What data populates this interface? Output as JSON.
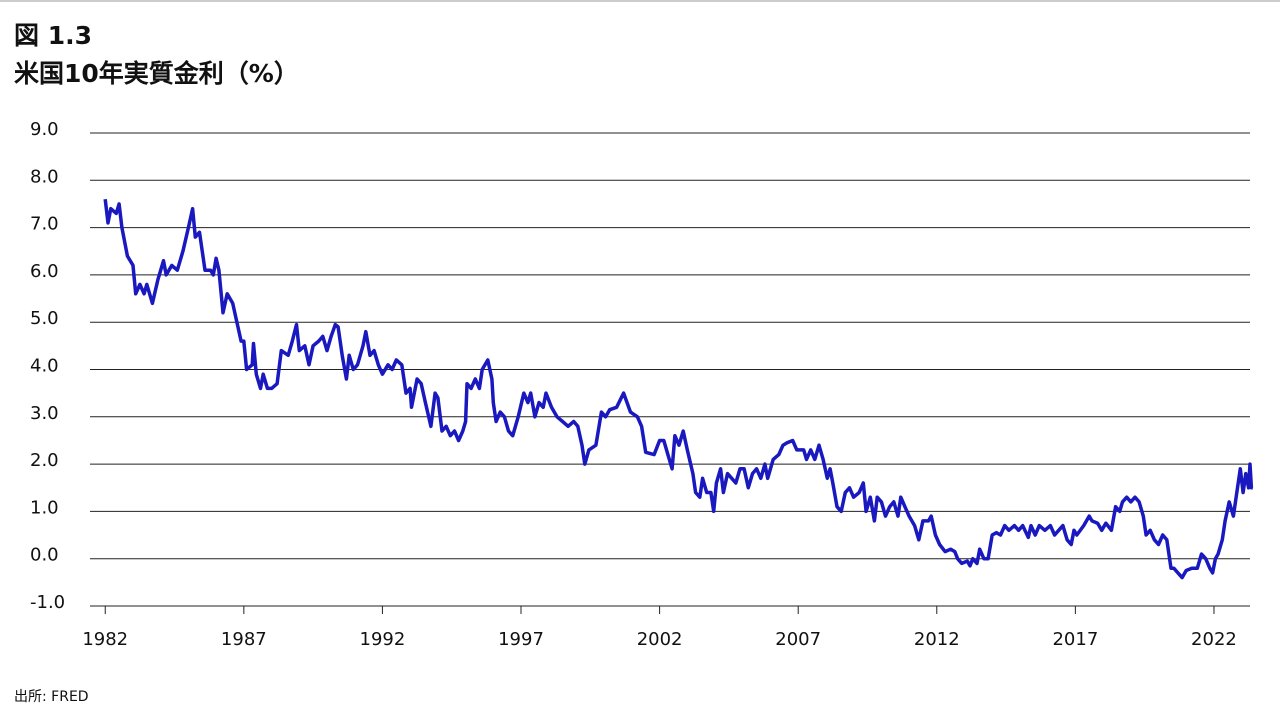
{
  "chart_data": {
    "type": "line",
    "figure_label": "図 1.3",
    "title": "米国10年実質金利（%）",
    "source": "出所: FRED",
    "x": [
      1982.0,
      1982.1,
      1982.2,
      1982.4,
      1982.5,
      1982.6,
      1982.8,
      1983.0,
      1983.1,
      1983.25,
      1983.4,
      1983.5,
      1983.7,
      1983.9,
      1984.1,
      1984.2,
      1984.4,
      1984.6,
      1984.8,
      1985.0,
      1985.15,
      1985.25,
      1985.4,
      1985.6,
      1985.8,
      1985.9,
      1986.0,
      1986.1,
      1986.25,
      1986.4,
      1986.6,
      1986.75,
      1986.9,
      1987.0,
      1987.1,
      1987.3,
      1987.35,
      1987.45,
      1987.6,
      1987.7,
      1987.85,
      1988.0,
      1988.2,
      1988.35,
      1988.6,
      1988.75,
      1988.9,
      1989.0,
      1989.2,
      1989.35,
      1989.5,
      1989.7,
      1989.85,
      1990.0,
      1990.15,
      1990.3,
      1990.4,
      1990.55,
      1990.7,
      1990.8,
      1990.95,
      1991.1,
      1991.3,
      1991.4,
      1991.55,
      1991.7,
      1991.85,
      1992.0,
      1992.2,
      1992.35,
      1992.5,
      1992.7,
      1992.85,
      1993.0,
      1993.05,
      1993.25,
      1993.4,
      1993.55,
      1993.75,
      1993.9,
      1994.0,
      1994.15,
      1994.3,
      1994.45,
      1994.6,
      1994.75,
      1994.9,
      1995.0,
      1995.05,
      1995.2,
      1995.35,
      1995.5,
      1995.6,
      1995.8,
      1995.95,
      1996.0,
      1996.1,
      1996.25,
      1996.4,
      1996.55,
      1996.7,
      1996.9,
      1997.1,
      1997.25,
      1997.35,
      1997.5,
      1997.65,
      1997.8,
      1997.9,
      1998.1,
      1998.3,
      1998.5,
      1998.7,
      1998.9,
      1999.05,
      1999.2,
      1999.3,
      1999.45,
      1999.7,
      1999.9,
      2000.05,
      2000.2,
      2000.45,
      2000.7,
      2000.95,
      2001.2,
      2001.35,
      2001.5,
      2001.8,
      2002.0,
      2002.15,
      2002.3,
      2002.45,
      2002.55,
      2002.7,
      2002.85,
      2003.0,
      2003.2,
      2003.3,
      2003.45,
      2003.55,
      2003.7,
      2003.85,
      2003.95,
      2004.05,
      2004.2,
      2004.3,
      2004.45,
      2004.6,
      2004.75,
      2004.9,
      2005.05,
      2005.2,
      2005.35,
      2005.5,
      2005.65,
      2005.8,
      2005.9,
      2006.1,
      2006.3,
      2006.45,
      2006.6,
      2006.8,
      2006.95,
      2007.2,
      2007.3,
      2007.45,
      2007.6,
      2007.75,
      2007.9,
      2008.05,
      2008.15,
      2008.25,
      2008.4,
      2008.55,
      2008.7,
      2008.85,
      2009.0,
      2009.2,
      2009.35,
      2009.45,
      2009.6,
      2009.75,
      2009.85,
      2010.0,
      2010.15,
      2010.3,
      2010.45,
      2010.6,
      2010.7,
      2010.85,
      2011.0,
      2011.2,
      2011.35,
      2011.5,
      2011.7,
      2011.8,
      2011.95,
      2012.1,
      2012.3,
      2012.5,
      2012.65,
      2012.75,
      2012.9,
      2013.1,
      2013.2,
      2013.3,
      2013.45,
      2013.55,
      2013.7,
      2013.85,
      2014.0,
      2014.15,
      2014.3,
      2014.45,
      2014.6,
      2014.8,
      2014.95,
      2015.1,
      2015.3,
      2015.4,
      2015.55,
      2015.7,
      2015.9,
      2016.1,
      2016.25,
      2016.4,
      2016.55,
      2016.7,
      2016.85,
      2016.95,
      2017.05,
      2017.3,
      2017.5,
      2017.6,
      2017.8,
      2017.95,
      2018.1,
      2018.3,
      2018.45,
      2018.6,
      2018.7,
      2018.85,
      2019.0,
      2019.15,
      2019.3,
      2019.45,
      2019.55,
      2019.7,
      2019.85,
      2020.0,
      2020.15,
      2020.3,
      2020.45,
      2020.55,
      2020.7,
      2020.85,
      2021.0,
      2021.2,
      2021.4,
      2021.55,
      2021.7,
      2021.85,
      2021.95,
      2022.05,
      2022.15,
      2022.3,
      2022.4,
      2022.55,
      2022.7,
      2022.85,
      2022.95,
      2023.05,
      2023.15,
      2023.25,
      2023.3,
      2023.35,
      2023.4
    ],
    "series": [
      {
        "color": "#1a18bf",
        "values": [
          7.6,
          7.1,
          7.4,
          7.3,
          7.5,
          7.0,
          6.4,
          6.2,
          5.6,
          5.8,
          5.6,
          5.8,
          5.4,
          5.9,
          6.3,
          6.0,
          6.2,
          6.1,
          6.5,
          7.0,
          7.4,
          6.8,
          6.9,
          6.1,
          6.1,
          6.0,
          6.35,
          6.1,
          5.2,
          5.6,
          5.4,
          5.0,
          4.6,
          4.6,
          4.0,
          4.1,
          4.55,
          3.9,
          3.6,
          3.9,
          3.6,
          3.6,
          3.7,
          4.4,
          4.3,
          4.6,
          4.95,
          4.4,
          4.5,
          4.1,
          4.5,
          4.6,
          4.7,
          4.4,
          4.7,
          4.95,
          4.9,
          4.3,
          3.8,
          4.3,
          4.0,
          4.1,
          4.5,
          4.8,
          4.3,
          4.4,
          4.1,
          3.9,
          4.1,
          4.0,
          4.2,
          4.1,
          3.5,
          3.6,
          3.2,
          3.8,
          3.7,
          3.3,
          2.8,
          3.5,
          3.4,
          2.7,
          2.8,
          2.6,
          2.7,
          2.5,
          2.7,
          2.9,
          3.7,
          3.6,
          3.8,
          3.6,
          4.0,
          4.2,
          3.8,
          3.3,
          2.9,
          3.1,
          3.0,
          2.7,
          2.6,
          3.0,
          3.5,
          3.3,
          3.5,
          3.0,
          3.3,
          3.2,
          3.5,
          3.2,
          3.0,
          2.9,
          2.8,
          2.9,
          2.8,
          2.4,
          2.0,
          2.3,
          2.4,
          3.1,
          3.0,
          3.15,
          3.2,
          3.5,
          3.1,
          3.0,
          2.8,
          2.25,
          2.2,
          2.5,
          2.5,
          2.2,
          1.9,
          2.6,
          2.4,
          2.7,
          2.3,
          1.8,
          1.4,
          1.3,
          1.7,
          1.4,
          1.4,
          1.0,
          1.6,
          1.9,
          1.4,
          1.8,
          1.7,
          1.6,
          1.9,
          1.9,
          1.5,
          1.8,
          1.9,
          1.7,
          2.0,
          1.7,
          2.1,
          2.2,
          2.4,
          2.45,
          2.5,
          2.3,
          2.3,
          2.1,
          2.3,
          2.1,
          2.4,
          2.1,
          1.7,
          1.9,
          1.6,
          1.1,
          1.0,
          1.4,
          1.5,
          1.3,
          1.4,
          1.6,
          1.0,
          1.3,
          0.8,
          1.3,
          1.2,
          0.9,
          1.1,
          1.2,
          0.9,
          1.3,
          1.1,
          0.9,
          0.7,
          0.4,
          0.8,
          0.8,
          0.9,
          0.5,
          0.3,
          0.15,
          0.2,
          0.15,
          0.0,
          -0.1,
          -0.05,
          -0.15,
          0.0,
          -0.1,
          0.2,
          0.0,
          0.0,
          0.5,
          0.55,
          0.5,
          0.7,
          0.6,
          0.7,
          0.6,
          0.7,
          0.45,
          0.7,
          0.5,
          0.7,
          0.6,
          0.7,
          0.5,
          0.6,
          0.7,
          0.4,
          0.3,
          0.6,
          0.5,
          0.7,
          0.9,
          0.8,
          0.75,
          0.6,
          0.75,
          0.6,
          1.1,
          1.0,
          1.2,
          1.3,
          1.2,
          1.3,
          1.2,
          0.9,
          0.5,
          0.6,
          0.4,
          0.3,
          0.5,
          0.4,
          -0.2,
          -0.2,
          -0.3,
          -0.4,
          -0.25,
          -0.2,
          -0.2,
          0.1,
          0.0,
          -0.2,
          -0.3,
          0.0,
          0.1,
          0.4,
          0.8,
          1.2,
          0.9,
          1.5,
          1.9,
          1.4,
          1.8,
          1.5,
          2.0,
          1.5,
          1.5
        ]
      }
    ],
    "xlim": [
      1981.45,
      2023.3
    ],
    "xticks": [
      1982,
      1987,
      1992,
      1997,
      2002,
      2007,
      2012,
      2017,
      2022
    ],
    "ylim": [
      -1,
      9
    ],
    "yticks": [
      {
        "value": -1,
        "label": "-1.0"
      },
      {
        "value": 0,
        "label": "0.0"
      },
      {
        "value": 1,
        "label": "1.0"
      },
      {
        "value": 2,
        "label": "2.0"
      },
      {
        "value": 3,
        "label": "3.0"
      },
      {
        "value": 4,
        "label": "4.0"
      },
      {
        "value": 5,
        "label": "5.0"
      },
      {
        "value": 6,
        "label": "6.0"
      },
      {
        "value": 7,
        "label": "7.0"
      },
      {
        "value": 8,
        "label": "8.0"
      },
      {
        "value": 9,
        "label": "9.0"
      }
    ],
    "grid": true
  }
}
